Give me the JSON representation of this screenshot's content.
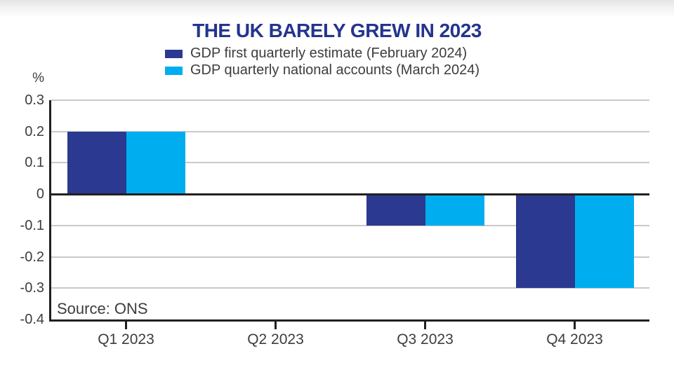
{
  "title": "THE UK BARELY GREW IN 2023",
  "source": "Source: ONS",
  "colors": {
    "title": "#24348E",
    "series1": "#2B3990",
    "series2": "#00AEEF",
    "axis": "#231f20",
    "gridline": "#c9c9c9",
    "text": "#3d3d3d"
  },
  "chart_data": {
    "type": "bar",
    "title": "THE UK BARELY GREW IN 2023",
    "categories": [
      "Q1 2023",
      "Q2 2023",
      "Q3 2023",
      "Q4 2023"
    ],
    "series": [
      {
        "name": "GDP first quarterly estimate (February 2024)",
        "color": "#2B3990",
        "values": [
          0.2,
          0.0,
          -0.1,
          -0.3
        ]
      },
      {
        "name": "GDP quarterly national accounts (March 2024)",
        "color": "#00AEEF",
        "values": [
          0.2,
          0.0,
          -0.1,
          -0.3
        ]
      }
    ],
    "xlabel": "",
    "ylabel": "%",
    "ylim": [
      -0.4,
      0.3
    ],
    "yticks": [
      0.3,
      0.2,
      0.1,
      0,
      -0.1,
      -0.2,
      -0.3,
      -0.4
    ],
    "grid": true,
    "legend_position": "top",
    "annotations": [
      "Source: ONS"
    ]
  }
}
